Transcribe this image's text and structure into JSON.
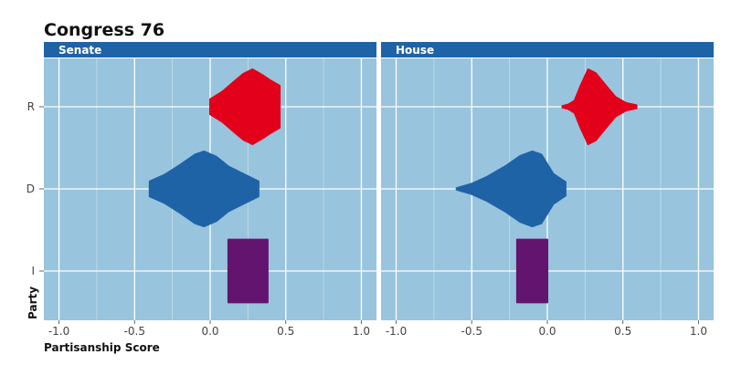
{
  "chart_data": {
    "type": "violin",
    "title": "Congress 76",
    "xlabel": "Partisanship Score",
    "ylabel": "Party",
    "xlim": [
      -1.1,
      1.1
    ],
    "x_ticks": [
      "-1.0",
      "-0.5",
      "0.0",
      "0.5",
      "1.0"
    ],
    "x_tick_values": [
      -1.0,
      -0.5,
      0.0,
      0.5,
      1.0
    ],
    "categories": [
      "R",
      "D",
      "I"
    ],
    "grid": true,
    "colors": {
      "R": "#e2001a",
      "D": "#1f63a7",
      "I": "#63146f",
      "panel_bg": "#98c4dd",
      "strip_bg": "#1f63a7"
    },
    "panels": [
      {
        "name": "Senate",
        "series": [
          {
            "name": "R",
            "profile": [
              [
                0.0,
                0.1
              ],
              [
                0.08,
                0.2
              ],
              [
                0.16,
                0.34
              ],
              [
                0.22,
                0.44
              ],
              [
                0.28,
                0.5
              ],
              [
                0.34,
                0.43
              ],
              [
                0.4,
                0.35
              ],
              [
                0.46,
                0.28
              ]
            ]
          },
          {
            "name": "D",
            "profile": [
              [
                -0.4,
                0.1
              ],
              [
                -0.3,
                0.19
              ],
              [
                -0.2,
                0.32
              ],
              [
                -0.1,
                0.46
              ],
              [
                -0.04,
                0.5
              ],
              [
                0.04,
                0.43
              ],
              [
                0.12,
                0.3
              ],
              [
                0.22,
                0.2
              ],
              [
                0.32,
                0.1
              ]
            ]
          },
          {
            "name": "I",
            "profile": [
              [
                0.12,
                0.42
              ],
              [
                0.38,
                0.42
              ]
            ]
          }
        ]
      },
      {
        "name": "House",
        "series": [
          {
            "name": "R",
            "profile": [
              [
                0.1,
                0.01
              ],
              [
                0.14,
                0.03
              ],
              [
                0.18,
                0.08
              ],
              [
                0.22,
                0.28
              ],
              [
                0.27,
                0.5
              ],
              [
                0.32,
                0.45
              ],
              [
                0.38,
                0.3
              ],
              [
                0.45,
                0.13
              ],
              [
                0.52,
                0.05
              ],
              [
                0.59,
                0.02
              ]
            ]
          },
          {
            "name": "D",
            "profile": [
              [
                -0.6,
                0.01
              ],
              [
                -0.5,
                0.07
              ],
              [
                -0.4,
                0.16
              ],
              [
                -0.28,
                0.3
              ],
              [
                -0.18,
                0.44
              ],
              [
                -0.1,
                0.5
              ],
              [
                -0.04,
                0.46
              ],
              [
                0.04,
                0.2
              ],
              [
                0.12,
                0.09
              ]
            ]
          },
          {
            "name": "I",
            "profile": [
              [
                -0.2,
                0.42
              ],
              [
                0.0,
                0.42
              ]
            ]
          }
        ]
      }
    ]
  }
}
